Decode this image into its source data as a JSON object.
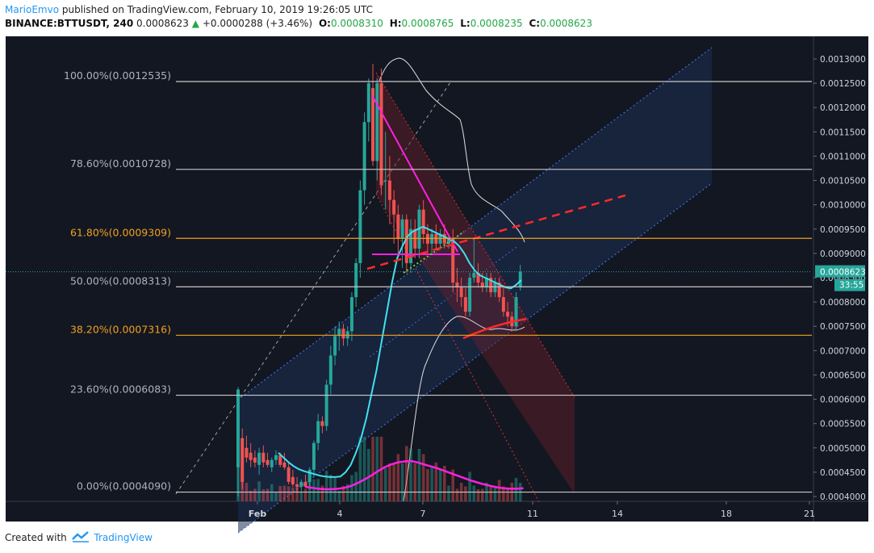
{
  "header": {
    "author": "MarioEmvo",
    "published": "published on TradingView.com, February 10, 2019 19:26:05 UTC",
    "symbol": "BINANCE:BTTUSDT, 240",
    "last": "0.0008623",
    "change": "+0.0000288 (+3.46%)",
    "o_label": "O:",
    "o_value": "0.0008310",
    "h_label": "H:",
    "h_value": "0.0008765",
    "l_label": "L:",
    "l_value": "0.0008235",
    "c_label": "C:",
    "c_value": "0.0008623"
  },
  "footer": {
    "created": "Created with",
    "brand": "TradingView"
  },
  "colors": {
    "background": "#131722",
    "up": "#26a69a",
    "down": "#ef5350",
    "fib_gray": "#c8c8c8",
    "fib_orange": "#f0a01e",
    "ma_cyan": "#40e0f0",
    "magenta": "#ff20e0",
    "red_dash": "#ff2a2a",
    "channel_blue": "#3a6fd8"
  },
  "chart_data": {
    "type": "candlestick",
    "symbol": "BINANCE:BTTUSDT",
    "interval": "240",
    "y_axis": {
      "range": [
        0.000394,
        0.000132
      ],
      "ticks": [
        "0.0013000",
        "0.0012500",
        "0.0012000",
        "0.0011500",
        "0.0011000",
        "0.0010500",
        "0.0010000",
        "0.0009500",
        "0.0009000",
        "0.0008500",
        "0.0008000",
        "0.0007500",
        "0.0007000",
        "0.0006500",
        "0.0006000",
        "0.0005500",
        "0.0005000",
        "0.0004500",
        "0.0004000"
      ]
    },
    "x_axis": {
      "ticks": [
        "Feb",
        "4",
        "7",
        "11",
        "14",
        "18",
        "21"
      ]
    },
    "current_price": {
      "label": "0.0008623",
      "countdown": "33:55"
    },
    "fib_levels": [
      {
        "label": "100.00%(0.0012535)",
        "price": 0.0012535,
        "color": "gray"
      },
      {
        "label": "78.60%(0.0010728)",
        "price": 0.0010728,
        "color": "gray"
      },
      {
        "label": "61.80%(0.0009309)",
        "price": 0.0009309,
        "color": "orange"
      },
      {
        "label": "50.00%(0.0008313)",
        "price": 0.0008313,
        "color": "gray"
      },
      {
        "label": "38.20%(0.0007316)",
        "price": 0.0007316,
        "color": "orange"
      },
      {
        "label": "23.60%(0.0006083)",
        "price": 0.0006083,
        "color": "gray"
      },
      {
        "label": "0.00%(0.0004090)",
        "price": 0.000409,
        "color": "gray"
      }
    ],
    "candles": [
      {
        "o": 0.00046,
        "h": 0.000625,
        "l": 0.0004,
        "c": 0.00062
      },
      {
        "o": 0.00052,
        "h": 0.00054,
        "l": 0.000415,
        "c": 0.00043
      },
      {
        "o": 0.0005,
        "h": 0.000525,
        "l": 0.00047,
        "c": 0.00048
      },
      {
        "o": 0.00049,
        "h": 0.00051,
        "l": 0.00046,
        "c": 0.000475
      },
      {
        "o": 0.00048,
        "h": 0.000495,
        "l": 0.00046,
        "c": 0.00047
      },
      {
        "o": 0.000465,
        "h": 0.0005,
        "l": 0.000445,
        "c": 0.00049
      },
      {
        "o": 0.00049,
        "h": 0.000505,
        "l": 0.00046,
        "c": 0.00047
      },
      {
        "o": 0.000475,
        "h": 0.00049,
        "l": 0.00046,
        "c": 0.000465
      },
      {
        "o": 0.00046,
        "h": 0.00048,
        "l": 0.00045,
        "c": 0.000475
      },
      {
        "o": 0.000475,
        "h": 0.000495,
        "l": 0.000465,
        "c": 0.000485
      },
      {
        "o": 0.000485,
        "h": 0.00049,
        "l": 0.00046,
        "c": 0.000465
      },
      {
        "o": 0.00047,
        "h": 0.00049,
        "l": 0.000455,
        "c": 0.00046
      },
      {
        "o": 0.00046,
        "h": 0.00047,
        "l": 0.000425,
        "c": 0.00043
      },
      {
        "o": 0.00044,
        "h": 0.000455,
        "l": 0.00042,
        "c": 0.000425
      },
      {
        "o": 0.000425,
        "h": 0.00044,
        "l": 0.00041,
        "c": 0.00042
      },
      {
        "o": 0.00042,
        "h": 0.000435,
        "l": 0.00041,
        "c": 0.00043
      },
      {
        "o": 0.00043,
        "h": 0.000445,
        "l": 0.00042,
        "c": 0.00042
      },
      {
        "o": 0.00043,
        "h": 0.00046,
        "l": 0.000415,
        "c": 0.000455
      },
      {
        "o": 0.000455,
        "h": 0.000515,
        "l": 0.00044,
        "c": 0.00051
      },
      {
        "o": 0.00051,
        "h": 0.00057,
        "l": 0.000495,
        "c": 0.000555
      },
      {
        "o": 0.000555,
        "h": 0.000565,
        "l": 0.00053,
        "c": 0.000545
      },
      {
        "o": 0.000545,
        "h": 0.00064,
        "l": 0.000535,
        "c": 0.00063
      },
      {
        "o": 0.00063,
        "h": 0.00071,
        "l": 0.00061,
        "c": 0.00069
      },
      {
        "o": 0.00069,
        "h": 0.00075,
        "l": 0.00067,
        "c": 0.00073
      },
      {
        "o": 0.00073,
        "h": 0.00076,
        "l": 0.0007,
        "c": 0.000745
      },
      {
        "o": 0.000745,
        "h": 0.000755,
        "l": 0.00071,
        "c": 0.000725
      },
      {
        "o": 0.000725,
        "h": 0.00075,
        "l": 0.00071,
        "c": 0.00074
      },
      {
        "o": 0.00074,
        "h": 0.00082,
        "l": 0.00072,
        "c": 0.00081
      },
      {
        "o": 0.00081,
        "h": 0.00089,
        "l": 0.00079,
        "c": 0.00088
      },
      {
        "o": 0.00088,
        "h": 0.00105,
        "l": 0.00085,
        "c": 0.00103
      },
      {
        "o": 0.00103,
        "h": 0.00119,
        "l": 0.001,
        "c": 0.00117
      },
      {
        "o": 0.00117,
        "h": 0.00126,
        "l": 0.00113,
        "c": 0.00125
      },
      {
        "o": 0.00124,
        "h": 0.00129,
        "l": 0.00108,
        "c": 0.00109
      },
      {
        "o": 0.00109,
        "h": 0.00126,
        "l": 0.00105,
        "c": 0.00125
      },
      {
        "o": 0.00125,
        "h": 0.00128,
        "l": 0.00102,
        "c": 0.00104
      },
      {
        "o": 0.00105,
        "h": 0.00115,
        "l": 0.00099,
        "c": 0.00105
      },
      {
        "o": 0.00105,
        "h": 0.0011,
        "l": 0.00096,
        "c": 0.00101
      },
      {
        "o": 0.00101,
        "h": 0.00103,
        "l": 0.00092,
        "c": 0.00098
      },
      {
        "o": 0.00098,
        "h": 0.001,
        "l": 0.0009,
        "c": 0.00093
      },
      {
        "o": 0.00093,
        "h": 0.00098,
        "l": 0.00087,
        "c": 0.00097
      },
      {
        "o": 0.00097,
        "h": 0.00098,
        "l": 0.00086,
        "c": 0.00088
      },
      {
        "o": 0.00088,
        "h": 0.00097,
        "l": 0.00086,
        "c": 0.00095
      },
      {
        "o": 0.00095,
        "h": 0.00097,
        "l": 0.00089,
        "c": 0.00091
      },
      {
        "o": 0.00091,
        "h": 0.001,
        "l": 0.00089,
        "c": 0.00099
      },
      {
        "o": 0.00099,
        "h": 0.00101,
        "l": 0.00092,
        "c": 0.00094
      },
      {
        "o": 0.00094,
        "h": 0.00096,
        "l": 0.0009,
        "c": 0.00092
      },
      {
        "o": 0.00092,
        "h": 0.00095,
        "l": 0.0009,
        "c": 0.00094
      },
      {
        "o": 0.00094,
        "h": 0.00096,
        "l": 0.00091,
        "c": 0.00092
      },
      {
        "o": 0.00092,
        "h": 0.00095,
        "l": 0.00091,
        "c": 0.00094
      },
      {
        "o": 0.00094,
        "h": 0.00096,
        "l": 0.00091,
        "c": 0.00092
      },
      {
        "o": 0.00092,
        "h": 0.00094,
        "l": 0.00091,
        "c": 0.00093
      },
      {
        "o": 0.00093,
        "h": 0.00095,
        "l": 0.00082,
        "c": 0.00084
      },
      {
        "o": 0.00084,
        "h": 0.00087,
        "l": 0.0008,
        "c": 0.00083
      },
      {
        "o": 0.00083,
        "h": 0.00085,
        "l": 0.00079,
        "c": 0.00081
      },
      {
        "o": 0.00081,
        "h": 0.00083,
        "l": 0.00077,
        "c": 0.00078
      },
      {
        "o": 0.00078,
        "h": 0.00086,
        "l": 0.00077,
        "c": 0.00085
      },
      {
        "o": 0.00085,
        "h": 0.00093,
        "l": 0.00084,
        "c": 0.00086
      },
      {
        "o": 0.00086,
        "h": 0.00088,
        "l": 0.00083,
        "c": 0.00084
      },
      {
        "o": 0.00084,
        "h": 0.00086,
        "l": 0.00082,
        "c": 0.00083
      },
      {
        "o": 0.00083,
        "h": 0.00086,
        "l": 0.00082,
        "c": 0.00085
      },
      {
        "o": 0.00085,
        "h": 0.00086,
        "l": 0.00081,
        "c": 0.00082
      },
      {
        "o": 0.00082,
        "h": 0.00085,
        "l": 0.00081,
        "c": 0.00084
      },
      {
        "o": 0.00084,
        "h": 0.00085,
        "l": 0.0008,
        "c": 0.00081
      },
      {
        "o": 0.00081,
        "h": 0.00083,
        "l": 0.00077,
        "c": 0.00078
      },
      {
        "o": 0.00078,
        "h": 0.0008,
        "l": 0.00075,
        "c": 0.00077
      },
      {
        "o": 0.00077,
        "h": 0.00078,
        "l": 0.00074,
        "c": 0.00075
      },
      {
        "o": 0.00075,
        "h": 0.00082,
        "l": 0.00074,
        "c": 0.00081
      },
      {
        "o": 0.000831,
        "h": 0.0008765,
        "l": 0.0008235,
        "c": 0.0008623
      }
    ],
    "moving_average": [
      0.00049,
      0.00048,
      0.00047,
      0.000462,
      0.000456,
      0.000452,
      0.000449,
      0.000446,
      0.000443,
      0.000441,
      0.00044,
      0.00044,
      0.000441,
      0.00045,
      0.000465,
      0.00049,
      0.00052,
      0.00056,
      0.00061,
      0.00066,
      0.00072,
      0.00078,
      0.00084,
      0.00089,
      0.000915,
      0.000935,
      0.000945,
      0.00095,
      0.000955,
      0.00095,
      0.000945,
      0.00094,
      0.000935,
      0.00093,
      0.000925,
      0.000915,
      0.0009,
      0.00088,
      0.000865,
      0.000855,
      0.00085,
      0.000845,
      0.00084,
      0.000835,
      0.00083,
      0.000828,
      0.000835,
      0.000845
    ],
    "volume_ma": [
      0.00042,
      0.000418,
      0.000416,
      0.000415,
      0.000415,
      0.000416,
      0.000418,
      0.000422,
      0.000428,
      0.000435,
      0.000443,
      0.000452,
      0.00046,
      0.000466,
      0.00047,
      0.000472,
      0.000473,
      0.00047,
      0.000466,
      0.000462,
      0.000458,
      0.000453,
      0.000448,
      0.000443,
      0.000438,
      0.000433,
      0.000429,
      0.000425,
      0.000422,
      0.000419,
      0.000417,
      0.000416,
      0.000416,
      0.000417
    ]
  }
}
